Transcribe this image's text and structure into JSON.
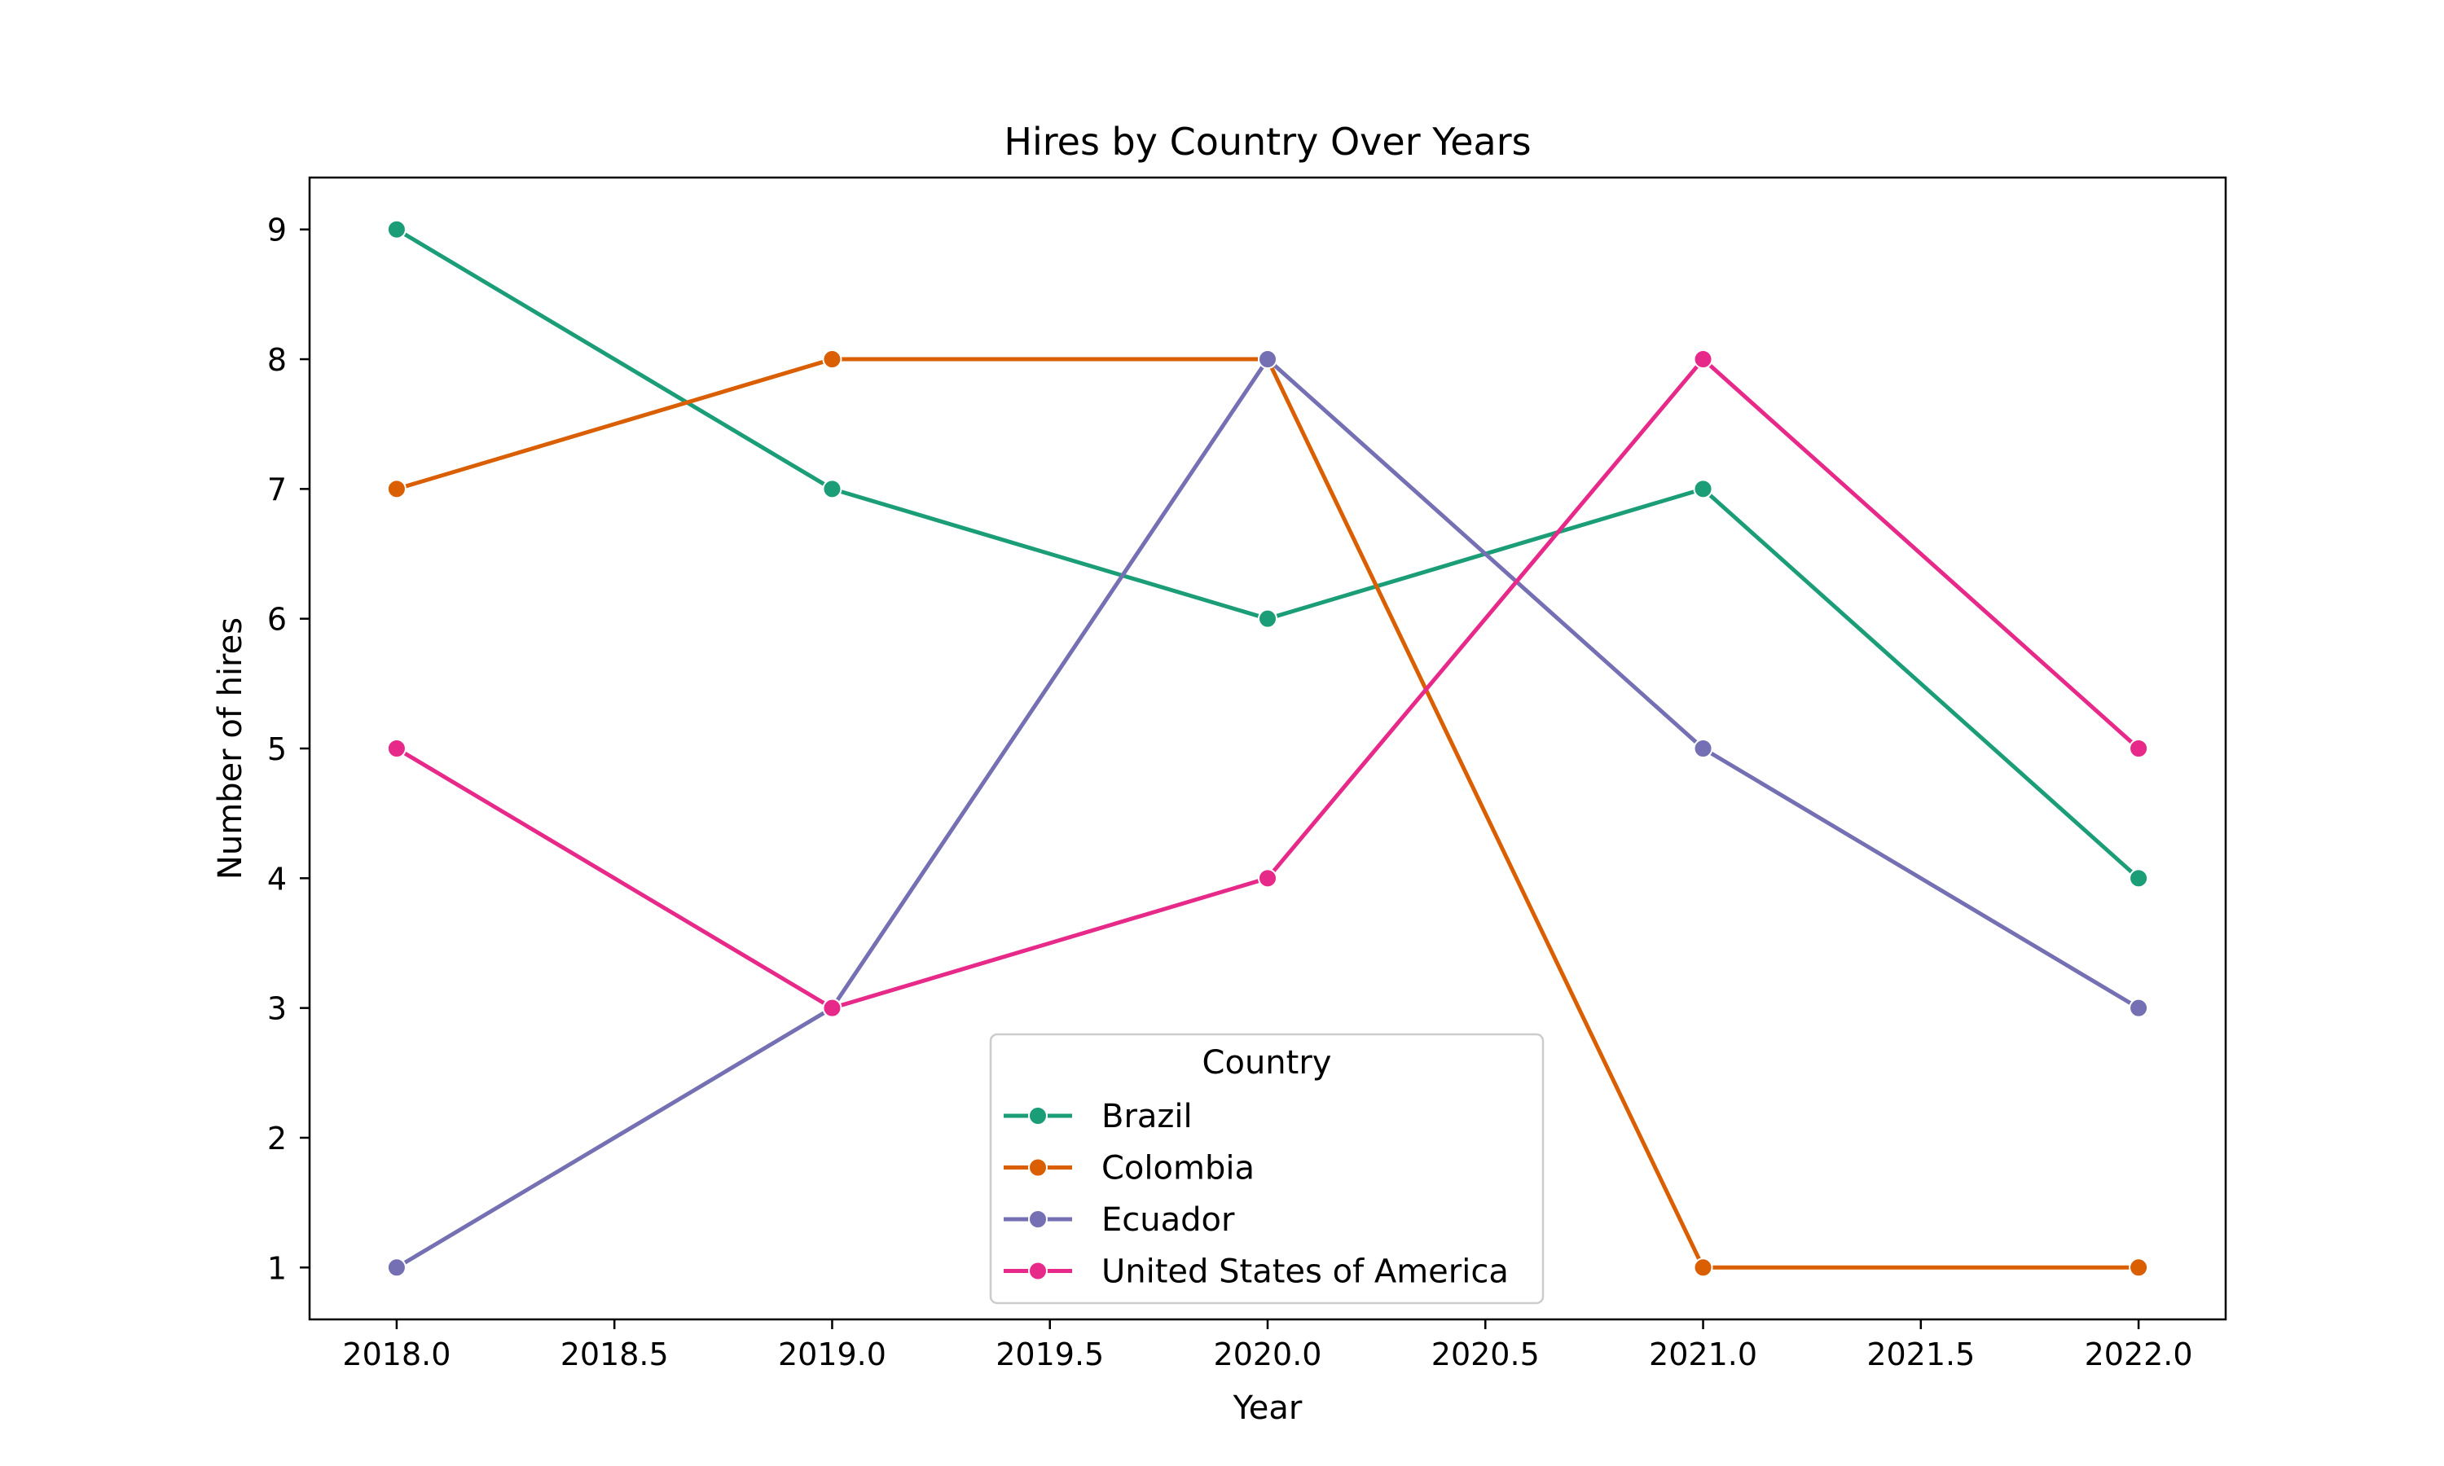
{
  "chart_data": {
    "type": "line",
    "title": "Hires by Country Over Years",
    "xlabel": "Year",
    "ylabel": "Number of hires",
    "x": [
      2018,
      2019,
      2020,
      2021,
      2022
    ],
    "xlim": [
      2017.8,
      2022.2
    ],
    "ylim": [
      0.6,
      9.4
    ],
    "xticks": [
      "2018.0",
      "2018.5",
      "2019.0",
      "2019.5",
      "2020.0",
      "2020.5",
      "2021.0",
      "2021.5",
      "2022.0"
    ],
    "yticks": [
      "1",
      "2",
      "3",
      "4",
      "5",
      "6",
      "7",
      "8",
      "9"
    ],
    "grid": false,
    "legend": {
      "title": "Country",
      "placement": "lower-center"
    },
    "series": [
      {
        "name": "Brazil",
        "color": "#1b9e77",
        "values": [
          9,
          7,
          6,
          7,
          4
        ]
      },
      {
        "name": "Colombia",
        "color": "#d95f02",
        "values": [
          7,
          8,
          8,
          1,
          1
        ]
      },
      {
        "name": "Ecuador",
        "color": "#7570b3",
        "values": [
          1,
          3,
          8,
          5,
          3
        ]
      },
      {
        "name": "United States of America",
        "color": "#e7298a",
        "values": [
          5,
          3,
          4,
          8,
          5
        ]
      }
    ]
  }
}
